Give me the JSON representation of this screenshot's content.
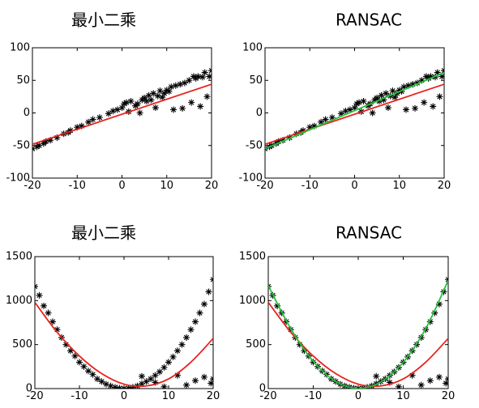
{
  "colors": {
    "points": "#000000",
    "least_squares_fit": "#e8231c",
    "ransac_fit": "#22c33a",
    "background": "#ffffff"
  },
  "chart_data": [
    {
      "type": "scatter",
      "title": "最小二乘",
      "xlim": [
        -20,
        20
      ],
      "ylim": [
        -100,
        100
      ],
      "xticks": [
        -20,
        -10,
        0,
        10,
        20
      ],
      "yticks": [
        -100,
        -50,
        0,
        50,
        100
      ],
      "grid": false,
      "series": [
        {
          "kind": "points",
          "marker": "*",
          "color": "#000000",
          "x": [
            -20,
            -19,
            -18.5,
            -17.5,
            -17,
            -16,
            -14.5,
            -13,
            -12,
            -11.5,
            -10,
            -9,
            -7.5,
            -6.5,
            -5,
            -3,
            -2,
            -1,
            0,
            0.5,
            1,
            1.5,
            2,
            3,
            3.5,
            4,
            4.5,
            5,
            5.5,
            6,
            6.5,
            7,
            7.5,
            8,
            8.5,
            9,
            9.5,
            10,
            10.5,
            11,
            11.5,
            12,
            13,
            13.5,
            14,
            15,
            15.5,
            16,
            16.5,
            17,
            17.5,
            18,
            18.5,
            19,
            19.5,
            20
          ],
          "y": [
            -55,
            -52,
            -50,
            -47,
            -44,
            -42,
            -38,
            -32,
            -30,
            -27,
            -22,
            -20,
            -14,
            -10,
            -7,
            -1,
            3,
            5,
            8,
            14,
            16,
            2,
            18,
            11,
            14,
            0,
            20,
            23,
            18,
            27,
            20,
            30,
            8,
            26,
            34,
            24,
            30,
            35,
            33,
            40,
            5,
            42,
            44,
            7,
            46,
            50,
            16,
            56,
            53,
            56,
            10,
            55,
            62,
            25,
            56,
            65
          ]
        },
        {
          "kind": "line",
          "name_visible": false,
          "color": "#e8231c",
          "x": [
            -20,
            20
          ],
          "y": [
            -48,
            44
          ]
        }
      ]
    },
    {
      "type": "scatter",
      "title": "RANSAC",
      "xlim": [
        -20,
        20
      ],
      "ylim": [
        -100,
        100
      ],
      "xticks": [
        -20,
        -10,
        0,
        10,
        20
      ],
      "yticks": [
        -100,
        -50,
        0,
        50,
        100
      ],
      "grid": false,
      "series": [
        {
          "kind": "points",
          "marker": "*",
          "color": "#000000",
          "x": [
            -20,
            -19,
            -18.5,
            -17.5,
            -17,
            -16,
            -14.5,
            -13,
            -12,
            -11.5,
            -10,
            -9,
            -7.5,
            -6.5,
            -5,
            -3,
            -2,
            -1,
            0,
            0.5,
            1,
            1.5,
            2,
            3,
            3.5,
            4,
            4.5,
            5,
            5.5,
            6,
            6.5,
            7,
            7.5,
            8,
            8.5,
            9,
            9.5,
            10,
            10.5,
            11,
            11.5,
            12,
            13,
            13.5,
            14,
            15,
            15.5,
            16,
            16.5,
            17,
            17.5,
            18,
            18.5,
            19,
            19.5,
            20
          ],
          "y": [
            -55,
            -52,
            -50,
            -47,
            -44,
            -42,
            -38,
            -32,
            -30,
            -27,
            -22,
            -20,
            -14,
            -10,
            -7,
            -1,
            3,
            5,
            8,
            14,
            16,
            2,
            18,
            11,
            14,
            0,
            20,
            23,
            18,
            27,
            20,
            30,
            8,
            26,
            34,
            24,
            30,
            35,
            33,
            40,
            5,
            42,
            44,
            7,
            46,
            50,
            16,
            56,
            53,
            56,
            10,
            55,
            62,
            25,
            56,
            65
          ]
        },
        {
          "kind": "line",
          "color": "#e8231c",
          "x": [
            -20,
            20
          ],
          "y": [
            -48,
            44
          ]
        },
        {
          "kind": "line",
          "color": "#22c33a",
          "x": [
            -20,
            20
          ],
          "y": [
            -55,
            62
          ]
        }
      ]
    },
    {
      "type": "scatter",
      "title": "最小二乘",
      "xlim": [
        -20,
        20
      ],
      "ylim": [
        0,
        1500
      ],
      "xticks": [
        -20,
        -10,
        0,
        10,
        20
      ],
      "yticks": [
        0,
        500,
        1000,
        1500
      ],
      "grid": false,
      "series": [
        {
          "kind": "points",
          "marker": "*",
          "color": "#000000",
          "x": [
            -20,
            -19,
            -18,
            -17,
            -16,
            -15,
            -14,
            -13,
            -12,
            -11,
            -10,
            -9,
            -8,
            -7,
            -6,
            -5,
            -4,
            -3,
            -2,
            -1,
            0,
            1,
            2,
            3,
            4,
            5,
            6,
            7,
            8,
            9,
            10,
            11,
            12,
            13,
            14,
            15,
            16,
            17,
            18,
            19,
            20,
            4,
            7,
            9,
            12,
            14,
            16,
            18,
            19.5,
            20
          ],
          "y": [
            1160,
            1060,
            940,
            860,
            760,
            670,
            580,
            500,
            430,
            370,
            300,
            250,
            200,
            160,
            110,
            80,
            50,
            30,
            15,
            5,
            2,
            5,
            15,
            30,
            55,
            80,
            110,
            150,
            190,
            240,
            300,
            360,
            430,
            500,
            580,
            670,
            760,
            860,
            960,
            1100,
            1240,
            140,
            70,
            20,
            150,
            40,
            90,
            130,
            60,
            110
          ]
        },
        {
          "kind": "curve",
          "color": "#e8231c",
          "x": [
            -20,
            -15,
            -10,
            -5,
            0,
            5,
            10,
            15,
            20
          ],
          "y": [
            980,
            640,
            370,
            170,
            50,
            30,
            110,
            300,
            570
          ]
        }
      ]
    },
    {
      "type": "scatter",
      "title": "RANSAC",
      "xlim": [
        -20,
        20
      ],
      "ylim": [
        0,
        1500
      ],
      "xticks": [
        -20,
        -10,
        0,
        10,
        20
      ],
      "yticks": [
        0,
        500,
        1000,
        1500
      ],
      "grid": false,
      "series": [
        {
          "kind": "points",
          "marker": "*",
          "color": "#000000",
          "x": [
            -20,
            -19,
            -18,
            -17,
            -16,
            -15,
            -14,
            -13,
            -12,
            -11,
            -10,
            -9,
            -8,
            -7,
            -6,
            -5,
            -4,
            -3,
            -2,
            -1,
            0,
            1,
            2,
            3,
            4,
            5,
            6,
            7,
            8,
            9,
            10,
            11,
            12,
            13,
            14,
            15,
            16,
            17,
            18,
            19,
            20,
            4,
            7,
            9,
            12,
            14,
            16,
            18,
            19.5,
            20
          ],
          "y": [
            1160,
            1060,
            940,
            860,
            760,
            670,
            580,
            500,
            430,
            370,
            300,
            250,
            200,
            160,
            110,
            80,
            50,
            30,
            15,
            5,
            2,
            5,
            15,
            30,
            55,
            80,
            110,
            150,
            190,
            240,
            300,
            360,
            430,
            500,
            580,
            670,
            760,
            860,
            960,
            1100,
            1240,
            140,
            70,
            20,
            150,
            40,
            90,
            130,
            60,
            110
          ]
        },
        {
          "kind": "curve",
          "color": "#e8231c",
          "x": [
            -20,
            -15,
            -10,
            -5,
            0,
            5,
            10,
            15,
            20
          ],
          "y": [
            980,
            640,
            370,
            170,
            50,
            30,
            110,
            300,
            570
          ]
        },
        {
          "kind": "curve",
          "color": "#22c33a",
          "x": [
            -20,
            -15,
            -10,
            -5,
            0,
            5,
            10,
            15,
            20
          ],
          "y": [
            1170,
            680,
            310,
            80,
            2,
            75,
            300,
            680,
            1230
          ]
        }
      ]
    }
  ]
}
